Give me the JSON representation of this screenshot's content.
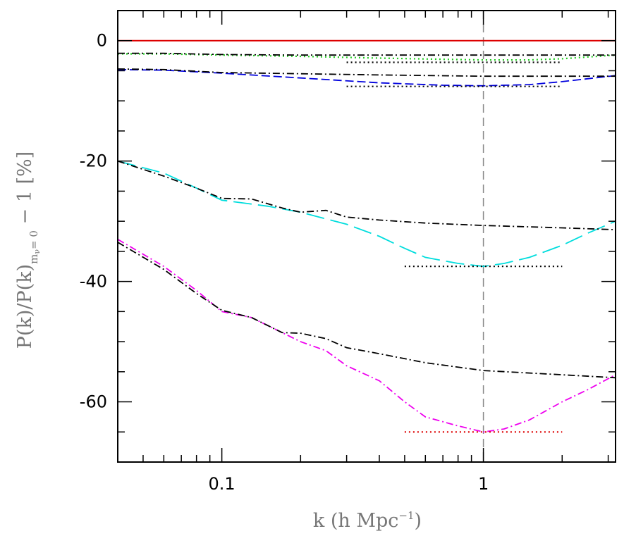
{
  "chart_data": {
    "type": "line",
    "title": "",
    "xlabel": "k (h Mpc",
    "xlabel_sup": "−1",
    "xlabel_end": ")",
    "ylabel": "P(k)/P(k)",
    "ylabel_sub": "m",
    "ylabel_subsub": "ν",
    "ylabel_sub2": "= 0",
    "ylabel_end": " − 1 [%]",
    "xscale": "log",
    "xlim": [
      0.04,
      3.2
    ],
    "ylim": [
      -70,
      5
    ],
    "x_ticks": [
      {
        "value": 0.1,
        "label": "0.1"
      },
      {
        "value": 1,
        "label": "1"
      }
    ],
    "y_ticks": [
      {
        "value": 0,
        "label": "0"
      },
      {
        "value": -20,
        "label": "-20"
      },
      {
        "value": -40,
        "label": "-40"
      },
      {
        "value": -60,
        "label": "-60"
      }
    ],
    "vertical_line": {
      "x": 1,
      "color": "#888888"
    },
    "reference_line": {
      "y": 0,
      "color": "#dd0000"
    },
    "series": [
      {
        "color": "#22cc22",
        "style": "dotted",
        "x": [
          0.04,
          0.06,
          0.1,
          0.2,
          0.4,
          0.7,
          1,
          1.5,
          2,
          3.2
        ],
        "y": [
          -2.2,
          -2.2,
          -2.4,
          -2.6,
          -2.9,
          -3.1,
          -3.2,
          -3.2,
          -3.0,
          -2.4
        ]
      },
      {
        "color": "#000000",
        "style": "dashdot",
        "x": [
          0.04,
          0.06,
          0.1,
          0.2,
          0.4,
          1,
          2,
          3.2
        ],
        "y": [
          -2.1,
          -2.1,
          -2.3,
          -2.4,
          -2.4,
          -2.4,
          -2.4,
          -2.4
        ]
      },
      {
        "color": "#0000dd",
        "style": "dashed",
        "x": [
          0.04,
          0.06,
          0.1,
          0.2,
          0.4,
          0.7,
          1,
          1.5,
          2,
          3.2
        ],
        "y": [
          -4.8,
          -4.9,
          -5.4,
          -6.2,
          -7.0,
          -7.4,
          -7.5,
          -7.3,
          -6.8,
          -5.8
        ]
      },
      {
        "color": "#000000",
        "style": "dashdot",
        "x": [
          0.04,
          0.06,
          0.1,
          0.2,
          0.4,
          1,
          2,
          3.2
        ],
        "y": [
          -4.7,
          -4.8,
          -5.3,
          -5.5,
          -5.7,
          -5.9,
          -5.9,
          -5.9
        ]
      },
      {
        "color": "#00dddd",
        "style": "longdash",
        "x": [
          0.04,
          0.06,
          0.08,
          0.1,
          0.15,
          0.2,
          0.3,
          0.4,
          0.5,
          0.6,
          0.8,
          1,
          1.2,
          1.5,
          2,
          2.5,
          3.2
        ],
        "y": [
          -20,
          -22,
          -24.5,
          -26.5,
          -27.5,
          -28.5,
          -30.5,
          -32.5,
          -34.5,
          -36,
          -37,
          -37.5,
          -37,
          -36,
          -34,
          -32,
          -30
        ]
      },
      {
        "color": "#000000",
        "style": "dashdot",
        "x": [
          0.04,
          0.06,
          0.08,
          0.1,
          0.13,
          0.17,
          0.2,
          0.25,
          0.3,
          0.4,
          0.6,
          1,
          2,
          3.2
        ],
        "y": [
          -20,
          -22.5,
          -24.5,
          -26.2,
          -26.3,
          -27.8,
          -28.5,
          -28.2,
          -29.3,
          -29.8,
          -30.3,
          -30.7,
          -31.1,
          -31.4
        ]
      },
      {
        "color": "#ee00ee",
        "style": "dashdot",
        "x": [
          0.04,
          0.06,
          0.08,
          0.1,
          0.13,
          0.17,
          0.2,
          0.25,
          0.3,
          0.4,
          0.5,
          0.6,
          0.8,
          1,
          1.2,
          1.5,
          2,
          2.5,
          3.2
        ],
        "y": [
          -33,
          -37.5,
          -41.5,
          -45,
          -46,
          -48.5,
          -50,
          -51.5,
          -54,
          -56.5,
          -60,
          -62.5,
          -64,
          -65,
          -64.5,
          -63,
          -60,
          -58,
          -55.5
        ]
      },
      {
        "color": "#000000",
        "style": "dashdot",
        "x": [
          0.04,
          0.06,
          0.08,
          0.1,
          0.13,
          0.17,
          0.2,
          0.25,
          0.3,
          0.4,
          0.6,
          1,
          2,
          3.2
        ],
        "y": [
          -33.5,
          -38,
          -42,
          -44.8,
          -46,
          -48.5,
          -48.6,
          -49.5,
          -51,
          -52,
          -53.5,
          -54.8,
          -55.5,
          -56
        ]
      },
      {
        "color": "#000000",
        "style": "dotted",
        "x": [
          0.3,
          2
        ],
        "y": [
          -3.6,
          -3.6
        ]
      },
      {
        "color": "#000000",
        "style": "dotted",
        "x": [
          0.3,
          2
        ],
        "y": [
          -7.6,
          -7.6
        ]
      },
      {
        "color": "#000000",
        "style": "dotted",
        "x": [
          0.5,
          2
        ],
        "y": [
          -37.5,
          -37.5
        ]
      },
      {
        "color": "#dd0000",
        "style": "dotted",
        "x": [
          0.5,
          2
        ],
        "y": [
          -65,
          -65
        ]
      }
    ]
  }
}
